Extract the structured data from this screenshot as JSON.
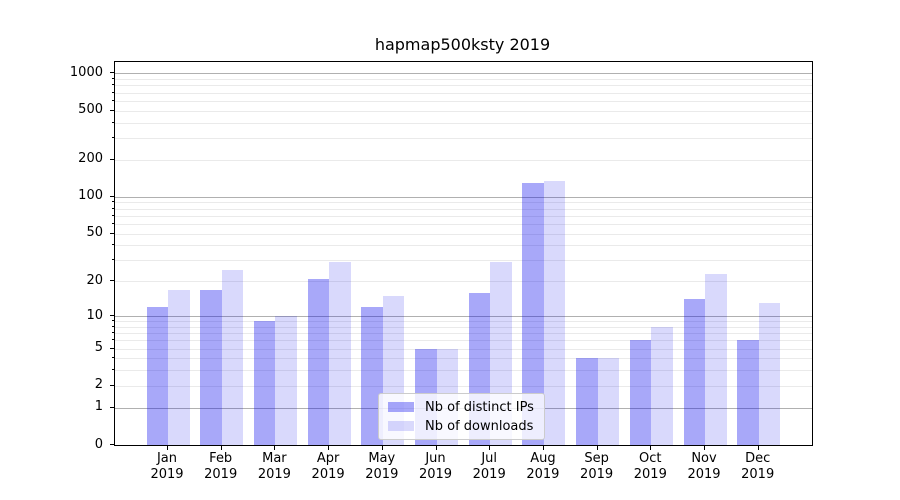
{
  "chart_data": {
    "type": "bar",
    "title": "hapmap500ksty 2019",
    "categories": [
      "Jan",
      "Feb",
      "Mar",
      "Apr",
      "May",
      "Jun",
      "Jul",
      "Aug",
      "Sep",
      "Oct",
      "Nov",
      "Dec"
    ],
    "category_year": "2019",
    "series": [
      {
        "name": "Nb of distinct IPs",
        "color": "#0000ee57",
        "values": [
          12,
          17,
          9,
          21,
          12,
          5,
          16,
          130,
          4,
          6,
          14,
          6
        ]
      },
      {
        "name": "Nb of downloads",
        "color": "#0000ee26",
        "values": [
          17,
          25,
          10,
          29,
          15,
          5,
          29,
          135,
          4,
          8,
          23,
          13
        ]
      }
    ],
    "yscale": "symlog (log10(1+v))",
    "ylim": [
      0,
      1240
    ],
    "ytick_values": [
      0,
      1,
      2,
      5,
      10,
      20,
      50,
      100,
      200,
      500,
      1000
    ],
    "major_gridline_values": [
      1,
      10,
      100,
      1000
    ],
    "minor_gridline_values": [
      2,
      3,
      4,
      5,
      6,
      7,
      8,
      9,
      20,
      30,
      40,
      50,
      60,
      70,
      80,
      90,
      200,
      300,
      400,
      500,
      600,
      700,
      800,
      900
    ],
    "grid": "horizontal, major + minor",
    "legend_position": "inside lower-center"
  },
  "colors": {
    "grid_major": "#b0b0b0",
    "grid_minor": "#eaeaea",
    "axis": "#000000",
    "text": "#000000",
    "legend_border": "#cccccc",
    "background": "#ffffff"
  }
}
